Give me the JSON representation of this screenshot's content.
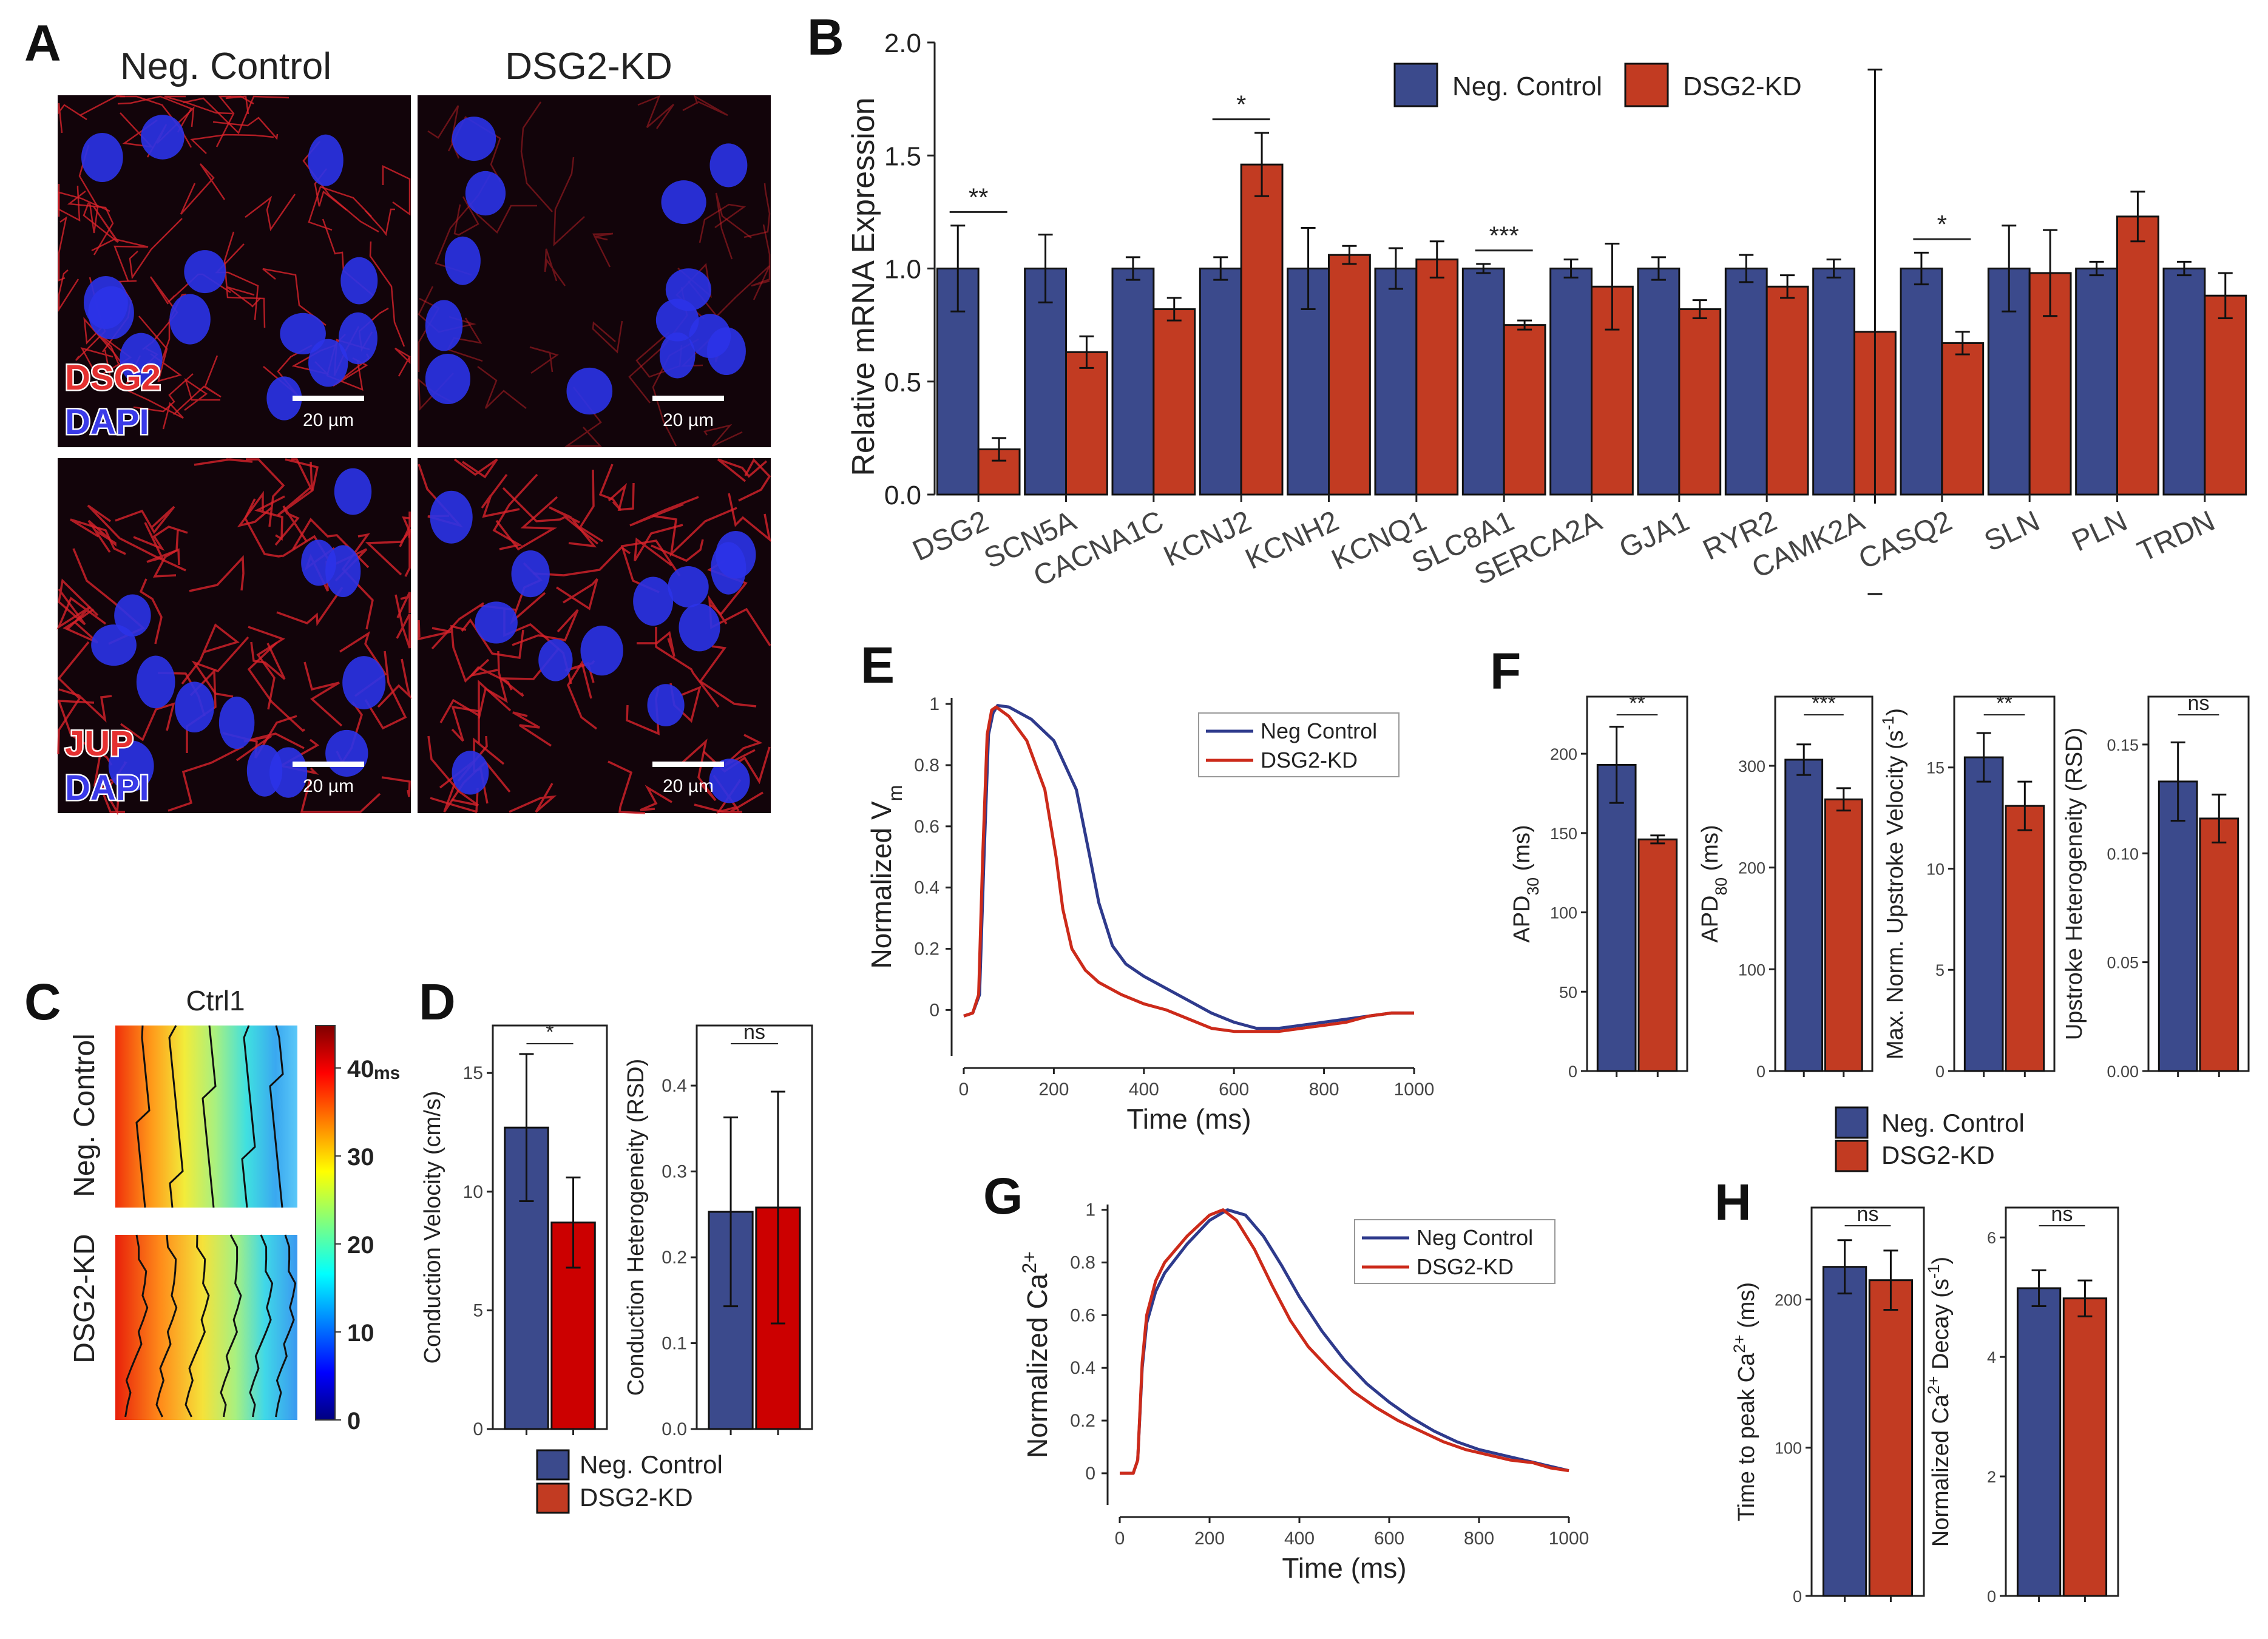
{
  "colors": {
    "control": "#3B4A8C",
    "kd": "#C23B22",
    "kd_d": "#CC0000",
    "line_ctrl": "#2E3A8C",
    "line_kd": "#CC2A1A",
    "stain_red": "#D8232A",
    "stain_blue": "#2B33E8"
  },
  "panels": {
    "A": "A",
    "B": "B",
    "C": "C",
    "D": "D",
    "E": "E",
    "F": "F",
    "G": "G",
    "H": "H"
  },
  "panelA": {
    "col_titles": [
      "Neg. Control",
      "DSG2-KD"
    ],
    "row1_labels": [
      "DSG2",
      "DAPI"
    ],
    "row2_labels": [
      "JUP",
      "DAPI"
    ],
    "scale_bar": "20 µm"
  },
  "legend": {
    "control": "Neg. Control",
    "kd": "DSG2-KD",
    "line_ctrl": "Neg Control",
    "line_kd": "DSG2-KD"
  },
  "panelC": {
    "title": "Ctrl1",
    "row_labels": [
      "Neg. Control",
      "DSG2-KD"
    ],
    "colorbar_ticks": [
      "40",
      "30",
      "20",
      "10",
      "0"
    ],
    "colorbar_unit": "ms",
    "icons": [
      "heatmap-activation-map",
      "isochrone-lines"
    ]
  },
  "chart_data": [
    {
      "id": "B",
      "type": "bar",
      "title": "",
      "ylabel": "Relative mRNA Expression",
      "ylim": [
        0,
        2.0
      ],
      "yticks": [
        "0.0",
        "0.5",
        "1.0",
        "1.5",
        "2.0"
      ],
      "categories": [
        "DSG2",
        "SCN5A",
        "CACNA1C",
        "KCNJ2",
        "KCNH2",
        "KCNQ1",
        "SLC8A1",
        "SERCA2A",
        "GJA1",
        "RYR2",
        "CAMK2A",
        "CASQ2",
        "SLN",
        "PLN",
        "TRDN"
      ],
      "series": [
        {
          "name": "Neg. Control",
          "values": [
            1.0,
            1.0,
            1.0,
            1.0,
            1.0,
            1.0,
            1.0,
            1.0,
            1.0,
            1.0,
            1.0,
            1.0,
            1.0,
            1.0,
            1.0
          ],
          "err": [
            0.19,
            0.15,
            0.05,
            0.05,
            0.18,
            0.09,
            0.02,
            0.04,
            0.05,
            0.06,
            0.04,
            0.07,
            0.19,
            0.03,
            0.03
          ]
        },
        {
          "name": "DSG2-KD",
          "values": [
            0.2,
            0.63,
            0.82,
            1.46,
            1.06,
            1.04,
            0.75,
            0.92,
            0.82,
            0.92,
            0.72,
            0.67,
            0.98,
            1.23,
            0.88
          ],
          "err": [
            0.05,
            0.07,
            0.05,
            0.14,
            0.04,
            0.08,
            0.02,
            0.19,
            0.04,
            0.05,
            1.16,
            0.05,
            0.19,
            0.11,
            0.1
          ]
        }
      ],
      "sig": [
        {
          "idx": 0,
          "text": "**"
        },
        {
          "idx": 3,
          "text": "*"
        },
        {
          "idx": 6,
          "text": "***"
        },
        {
          "idx": 11,
          "text": "*"
        }
      ]
    },
    {
      "id": "D1",
      "type": "bar",
      "ylabel": "Conduction Velocity (cm/s)",
      "ylim": [
        0,
        17
      ],
      "yticks": [
        "0",
        "5",
        "10",
        "15"
      ],
      "values": [
        12.7,
        8.7
      ],
      "err": [
        3.1,
        1.9
      ],
      "sig": "*"
    },
    {
      "id": "D2",
      "type": "bar",
      "ylabel": "Conduction Heterogeneity (RSD)",
      "ylim": [
        0,
        0.47
      ],
      "yticks": [
        "0.0",
        "0.1",
        "0.2",
        "0.3",
        "0.4"
      ],
      "values": [
        0.253,
        0.258
      ],
      "err": [
        0.11,
        0.135
      ],
      "sig": "ns"
    },
    {
      "id": "E",
      "type": "line",
      "ylabel": "Normalized V",
      "ylabel_sub": "m",
      "xlabel": "Time (ms)",
      "xlim": [
        0,
        1000
      ],
      "ylim": [
        -0.15,
        1.02
      ],
      "xticks": [
        "0",
        "200",
        "400",
        "600",
        "800",
        "1000"
      ],
      "yticks": [
        "0",
        "0.2",
        "0.4",
        "0.6",
        "0.8",
        "1"
      ],
      "series": [
        {
          "name": "Neg Control",
          "points": [
            [
              0,
              -0.02
            ],
            [
              20,
              -0.01
            ],
            [
              35,
              0.05
            ],
            [
              45,
              0.5
            ],
            [
              55,
              0.9
            ],
            [
              65,
              0.97
            ],
            [
              75,
              0.995
            ],
            [
              100,
              0.99
            ],
            [
              150,
              0.95
            ],
            [
              200,
              0.88
            ],
            [
              250,
              0.72
            ],
            [
              280,
              0.5
            ],
            [
              300,
              0.35
            ],
            [
              330,
              0.21
            ],
            [
              360,
              0.15
            ],
            [
              400,
              0.11
            ],
            [
              450,
              0.07
            ],
            [
              500,
              0.03
            ],
            [
              550,
              -0.01
            ],
            [
              600,
              -0.04
            ],
            [
              650,
              -0.06
            ],
            [
              700,
              -0.06
            ],
            [
              750,
              -0.05
            ],
            [
              800,
              -0.04
            ],
            [
              850,
              -0.03
            ],
            [
              900,
              -0.02
            ],
            [
              950,
              -0.01
            ],
            [
              1000,
              -0.01
            ]
          ]
        },
        {
          "name": "DSG2-KD",
          "points": [
            [
              0,
              -0.02
            ],
            [
              20,
              -0.01
            ],
            [
              33,
              0.05
            ],
            [
              42,
              0.5
            ],
            [
              52,
              0.9
            ],
            [
              62,
              0.98
            ],
            [
              72,
              0.99
            ],
            [
              100,
              0.96
            ],
            [
              140,
              0.88
            ],
            [
              180,
              0.72
            ],
            [
              205,
              0.5
            ],
            [
              220,
              0.33
            ],
            [
              240,
              0.2
            ],
            [
              270,
              0.13
            ],
            [
              300,
              0.09
            ],
            [
              350,
              0.05
            ],
            [
              400,
              0.02
            ],
            [
              450,
              0.0
            ],
            [
              500,
              -0.03
            ],
            [
              550,
              -0.06
            ],
            [
              600,
              -0.07
            ],
            [
              650,
              -0.07
            ],
            [
              700,
              -0.07
            ],
            [
              750,
              -0.06
            ],
            [
              800,
              -0.05
            ],
            [
              850,
              -0.04
            ],
            [
              900,
              -0.02
            ],
            [
              950,
              -0.01
            ],
            [
              1000,
              -0.01
            ]
          ]
        }
      ]
    },
    {
      "id": "F1",
      "type": "bar",
      "ylabel": "APD",
      "ylabel_sub": "30",
      "ylabel_suffix": " (ms)",
      "ylim": [
        0,
        236
      ],
      "yticks": [
        "0",
        "50",
        "100",
        "150",
        "200"
      ],
      "values": [
        193,
        146
      ],
      "err": [
        24,
        2.5
      ],
      "sig": "**"
    },
    {
      "id": "F2",
      "type": "bar",
      "ylabel": "APD",
      "ylabel_sub": "80",
      "ylabel_suffix": " (ms)",
      "ylim": [
        0,
        368
      ],
      "yticks": [
        "0",
        "100",
        "200",
        "300"
      ],
      "values": [
        306,
        267
      ],
      "err": [
        15,
        11
      ],
      "sig": "***"
    },
    {
      "id": "F3",
      "type": "bar",
      "ylabel": "Max. Norm. Upstroke Velocity (s",
      "ylabel_sup": "-1",
      "ylabel_suffix": ")",
      "ylim": [
        0,
        18.5
      ],
      "yticks": [
        "0",
        "5",
        "10",
        "15"
      ],
      "values": [
        15.5,
        13.1
      ],
      "err": [
        1.2,
        1.2
      ],
      "sig": "**"
    },
    {
      "id": "F4",
      "type": "bar",
      "ylabel": "Upstroke Heterogeneity (RSD)",
      "ylim": [
        0,
        0.172
      ],
      "yticks": [
        "0.00",
        "0.05",
        "0.10",
        "0.15"
      ],
      "values": [
        0.133,
        0.116
      ],
      "err": [
        0.018,
        0.011
      ],
      "sig": "ns"
    },
    {
      "id": "G",
      "type": "line",
      "ylabel": "Normalized Ca",
      "ylabel_sup": "2+",
      "xlabel": "Time (ms)",
      "xlim": [
        0,
        1000
      ],
      "ylim": [
        -0.12,
        1.02
      ],
      "xticks": [
        "0",
        "200",
        "400",
        "600",
        "800",
        "1000"
      ],
      "yticks": [
        "0",
        "0.2",
        "0.4",
        "0.6",
        "0.8",
        "1"
      ],
      "series": [
        {
          "name": "Neg Control",
          "points": [
            [
              0,
              0
            ],
            [
              30,
              0
            ],
            [
              40,
              0.05
            ],
            [
              50,
              0.4
            ],
            [
              60,
              0.57
            ],
            [
              80,
              0.69
            ],
            [
              100,
              0.76
            ],
            [
              150,
              0.87
            ],
            [
              200,
              0.96
            ],
            [
              240,
              1.0
            ],
            [
              280,
              0.98
            ],
            [
              320,
              0.9
            ],
            [
              360,
              0.79
            ],
            [
              400,
              0.67
            ],
            [
              450,
              0.54
            ],
            [
              500,
              0.43
            ],
            [
              550,
              0.34
            ],
            [
              600,
              0.27
            ],
            [
              650,
              0.21
            ],
            [
              700,
              0.16
            ],
            [
              750,
              0.12
            ],
            [
              800,
              0.09
            ],
            [
              850,
              0.07
            ],
            [
              900,
              0.05
            ],
            [
              950,
              0.03
            ],
            [
              1000,
              0.01
            ]
          ]
        },
        {
          "name": "DSG2-KD",
          "points": [
            [
              0,
              0
            ],
            [
              30,
              0
            ],
            [
              40,
              0.05
            ],
            [
              50,
              0.42
            ],
            [
              60,
              0.6
            ],
            [
              80,
              0.73
            ],
            [
              100,
              0.8
            ],
            [
              150,
              0.9
            ],
            [
              200,
              0.98
            ],
            [
              230,
              1.0
            ],
            [
              260,
              0.96
            ],
            [
              300,
              0.85
            ],
            [
              340,
              0.71
            ],
            [
              380,
              0.58
            ],
            [
              420,
              0.48
            ],
            [
              470,
              0.39
            ],
            [
              520,
              0.31
            ],
            [
              570,
              0.25
            ],
            [
              620,
              0.2
            ],
            [
              670,
              0.16
            ],
            [
              720,
              0.12
            ],
            [
              770,
              0.09
            ],
            [
              820,
              0.07
            ],
            [
              870,
              0.05
            ],
            [
              920,
              0.04
            ],
            [
              960,
              0.02
            ],
            [
              1000,
              0.01
            ]
          ]
        }
      ]
    },
    {
      "id": "H1",
      "type": "bar",
      "ylabel": "Time to peak Ca",
      "ylabel_sup": "2+",
      "ylabel_suffix": " (ms)",
      "ylim": [
        0,
        262
      ],
      "yticks": [
        "0",
        "100",
        "200"
      ],
      "values": [
        222,
        213
      ],
      "err": [
        18,
        20
      ],
      "sig": "ns"
    },
    {
      "id": "H2",
      "type": "bar",
      "ylabel": "Normalized Ca",
      "ylabel_sup": "2+",
      "ylabel_suffix": " Decay (s",
      "ylabel_sup2": "-1",
      "ylabel_suffix2": ")",
      "ylim": [
        0,
        6.5
      ],
      "yticks": [
        "0",
        "2",
        "4",
        "6"
      ],
      "values": [
        5.15,
        4.98
      ],
      "err": [
        0.3,
        0.3
      ],
      "sig": "ns"
    }
  ]
}
